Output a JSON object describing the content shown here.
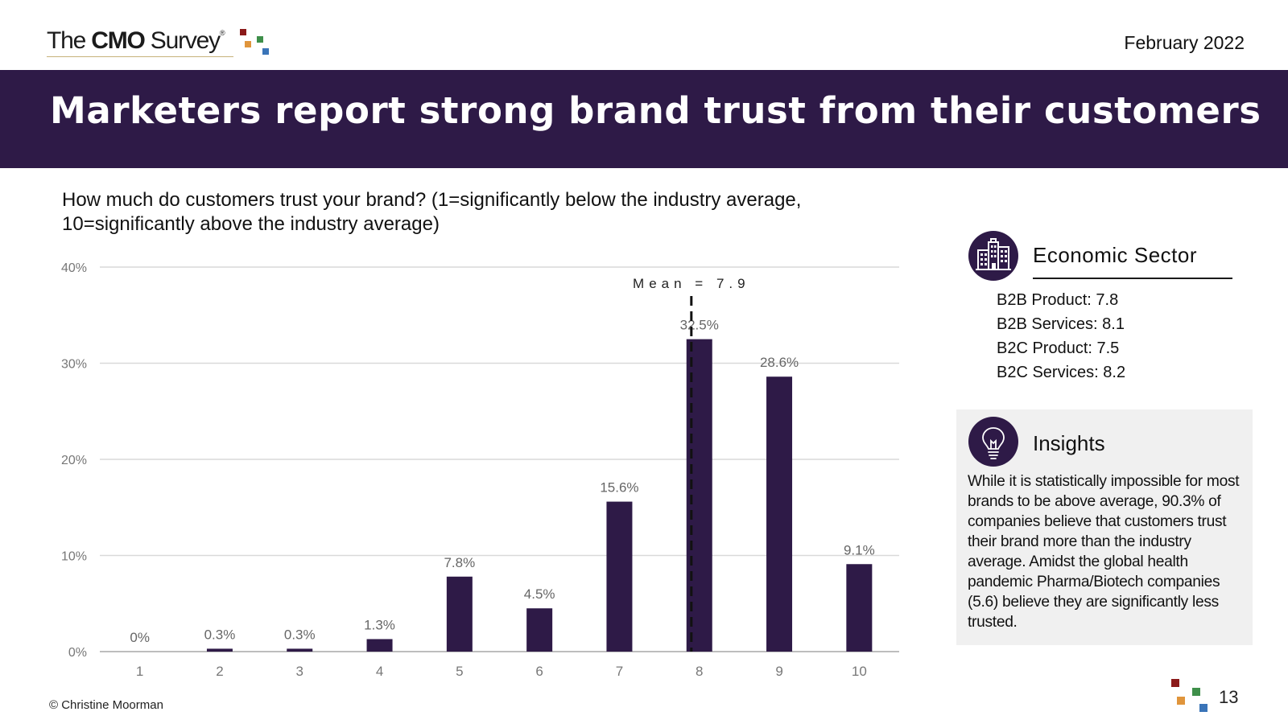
{
  "header": {
    "logo": {
      "the": "The",
      "cmo": "CMO",
      "survey": "Survey",
      "reg": "®"
    },
    "date": "February 2022",
    "title": "Marketers report strong brand trust from their customers"
  },
  "question": "How much do customers trust your brand? (1=significantly below the industry average, 10=significantly above the industry average)",
  "chart_data": {
    "type": "bar",
    "categories": [
      "1",
      "2",
      "3",
      "4",
      "5",
      "6",
      "7",
      "8",
      "9",
      "10"
    ],
    "values": [
      0,
      0.3,
      0.3,
      1.3,
      7.8,
      4.5,
      15.6,
      32.5,
      28.6,
      9.1
    ],
    "value_labels": [
      "0%",
      "0.3%",
      "0.3%",
      "1.3%",
      "7.8%",
      "4.5%",
      "15.6%",
      "32.5%",
      "28.6%",
      "9.1%"
    ],
    "ylim": [
      0,
      40
    ],
    "yticks": [
      0,
      10,
      20,
      30,
      40
    ],
    "ytick_labels": [
      "0%",
      "10%",
      "20%",
      "30%",
      "40%"
    ],
    "xlabel": "",
    "ylabel": "",
    "grid": true,
    "bar_color": "#2e1a47",
    "mean": {
      "value": 7.9,
      "label": "Mean = 7.9"
    }
  },
  "sector": {
    "title": "Economic Sector",
    "icon": "building-icon",
    "items": [
      "B2B Product: 7.8",
      "B2B Services: 8.1",
      "B2C Product: 7.5",
      "B2C Services: 8.2"
    ]
  },
  "insights": {
    "title": "Insights",
    "icon": "lightbulb-icon",
    "text": "While it is statistically impossible for most brands to be above average, 90.3% of companies believe that customers trust their brand more than the industry average. Amidst the global health pandemic Pharma/Biotech companies (5.6) believe they are significantly less trusted."
  },
  "footer": {
    "copyright": "© Christine Moorman",
    "page": "13"
  },
  "colors": {
    "banner": "#2e1a47",
    "sq_red": "#8b1a1a",
    "sq_orange": "#e0953c",
    "sq_green": "#3e8f4a",
    "sq_blue": "#3a74b8"
  }
}
